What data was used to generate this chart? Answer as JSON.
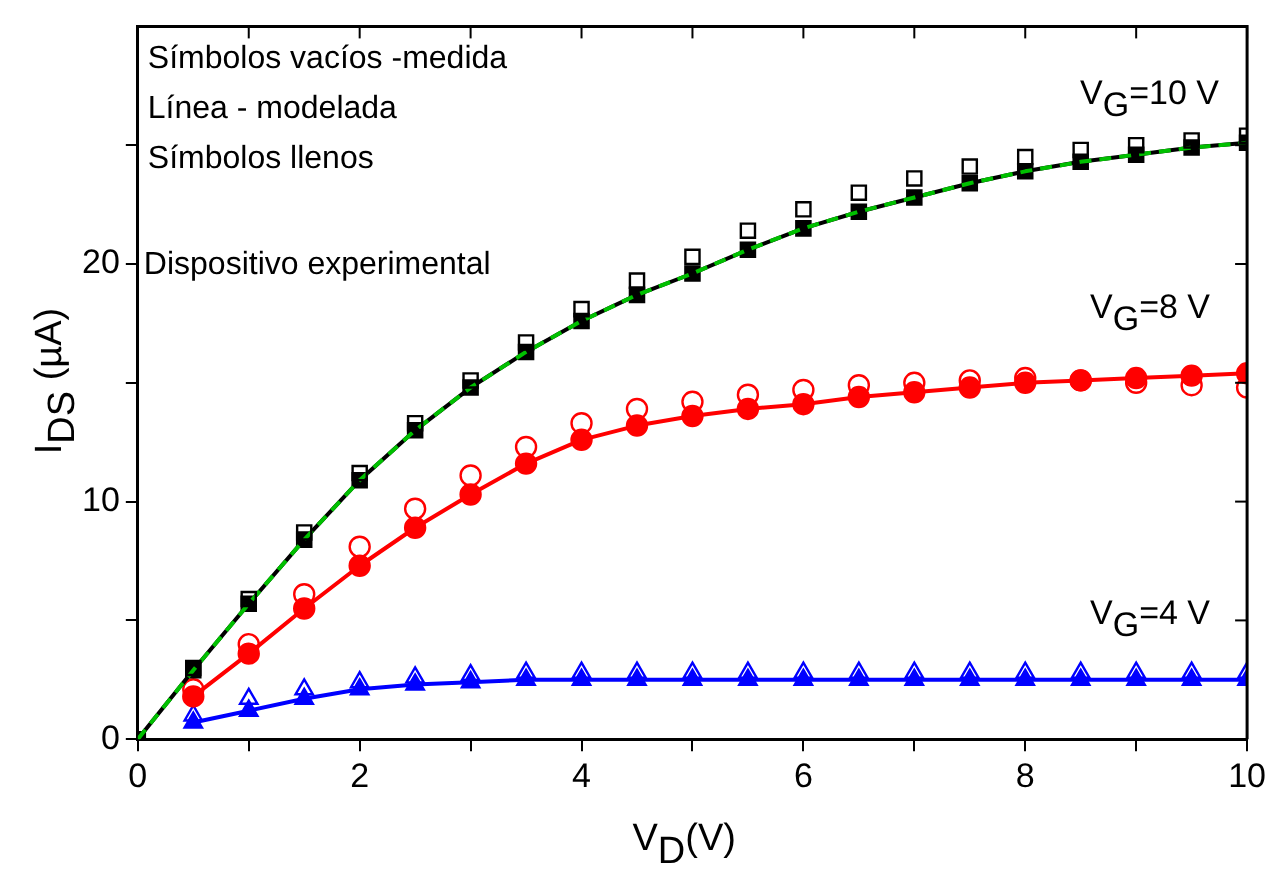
{
  "chart_data": {
    "type": "scatter",
    "xlabel": "V$_{D}$(V)",
    "ylabel": "I$_{DS}$ (µA)",
    "x": [
      0.5,
      1,
      1.5,
      2,
      2.5,
      3,
      3.5,
      4,
      4.5,
      5,
      5.5,
      6,
      6.5,
      7,
      7.5,
      8,
      8.5,
      9,
      9.5,
      10
    ],
    "xlim": [
      0,
      10
    ],
    "xticks": [
      0,
      {
        "value": 1,
        "label": null
      },
      2,
      {
        "value": 3,
        "label": null
      },
      4,
      {
        "value": 5,
        "label": null
      },
      6,
      {
        "value": 7,
        "label": null
      },
      8,
      {
        "value": 9,
        "label": null
      },
      10
    ],
    "ylim": [
      0,
      30
    ],
    "yticks": [
      0,
      {
        "value": 5,
        "label": null
      },
      10,
      {
        "value": 15,
        "label": null
      },
      20,
      {
        "value": 25,
        "label": null
      }
    ],
    "grid": false,
    "legend": false,
    "series": [
      {
        "marker": "square",
        "color": "#000000",
        "values": [
          3.0,
          5.9,
          8.7,
          11.2,
          13.3,
          15.1,
          16.7,
          18.1,
          19.3,
          20.3,
          21.4,
          22.3,
          23.0,
          23.6,
          24.1,
          24.5,
          24.8,
          25.0,
          25.2,
          25.4
        ]
      },
      {
        "type": "line",
        "marker": "none",
        "line_style": "dashed",
        "color": "#00c000",
        "x": [
          0,
          0.5,
          1,
          1.5,
          2,
          2.5,
          3,
          3.5,
          4,
          4.5,
          5,
          5.5,
          6,
          6.5,
          7,
          7.5,
          8,
          8.5,
          9,
          9.5,
          10
        ],
        "values": [
          0,
          2.9,
          5.7,
          8.4,
          10.9,
          13.0,
          14.8,
          16.3,
          17.6,
          18.7,
          19.6,
          20.6,
          21.5,
          22.2,
          22.8,
          23.4,
          23.9,
          24.3,
          24.6,
          24.9,
          25.1
        ]
      },
      {
        "type": "line",
        "marker": "square",
        "color": "#000000",
        "x": [
          0,
          0.5,
          1,
          1.5,
          2,
          2.5,
          3,
          3.5,
          4,
          4.5,
          5,
          5.5,
          6,
          6.5,
          7,
          7.5,
          8,
          8.5,
          9,
          9.5,
          10
        ],
        "values": [
          0,
          2.9,
          5.7,
          8.4,
          10.9,
          13.0,
          14.8,
          16.3,
          17.6,
          18.7,
          19.6,
          20.6,
          21.5,
          22.2,
          22.8,
          23.4,
          23.9,
          24.3,
          24.6,
          24.9,
          25.1
        ]
      },
      {
        "marker": "circle",
        "color": "#ff0000",
        "values": [
          2.1,
          4.0,
          6.1,
          8.1,
          9.7,
          11.1,
          12.3,
          13.3,
          13.9,
          14.2,
          14.5,
          14.7,
          14.9,
          15.0,
          15.1,
          15.2,
          15.1,
          15.0,
          14.9,
          14.8
        ]
      },
      {
        "type": "line",
        "marker": "circle",
        "color": "#ff0000",
        "values": [
          1.8,
          3.6,
          5.5,
          7.3,
          8.9,
          10.3,
          11.6,
          12.6,
          13.2,
          13.6,
          13.9,
          14.1,
          14.4,
          14.6,
          14.8,
          15.0,
          15.1,
          15.2,
          15.3,
          15.4
        ]
      },
      {
        "marker": "triangle",
        "color": "#0000ff",
        "values": [
          1.0,
          1.7,
          2.1,
          2.4,
          2.6,
          2.7,
          2.8,
          2.8,
          2.8,
          2.8,
          2.8,
          2.8,
          2.8,
          2.8,
          2.8,
          2.8,
          2.8,
          2.8,
          2.8,
          2.8
        ]
      },
      {
        "type": "line",
        "marker": "triangle",
        "color": "#0000ff",
        "values": [
          0.7,
          1.2,
          1.7,
          2.1,
          2.3,
          2.4,
          2.5,
          2.5,
          2.5,
          2.5,
          2.5,
          2.5,
          2.5,
          2.5,
          2.5,
          2.5,
          2.5,
          2.5,
          2.5,
          2.5
        ]
      }
    ],
    "annotations": [
      "Símbolos vacíos -medida",
      "Línea - modelada",
      "Símbolos llenos",
      "Dispositivo experimental",
      "V$_{G}$=10 V",
      "V$_{G}$=8 V",
      "V$_{G}$=4 V"
    ]
  }
}
